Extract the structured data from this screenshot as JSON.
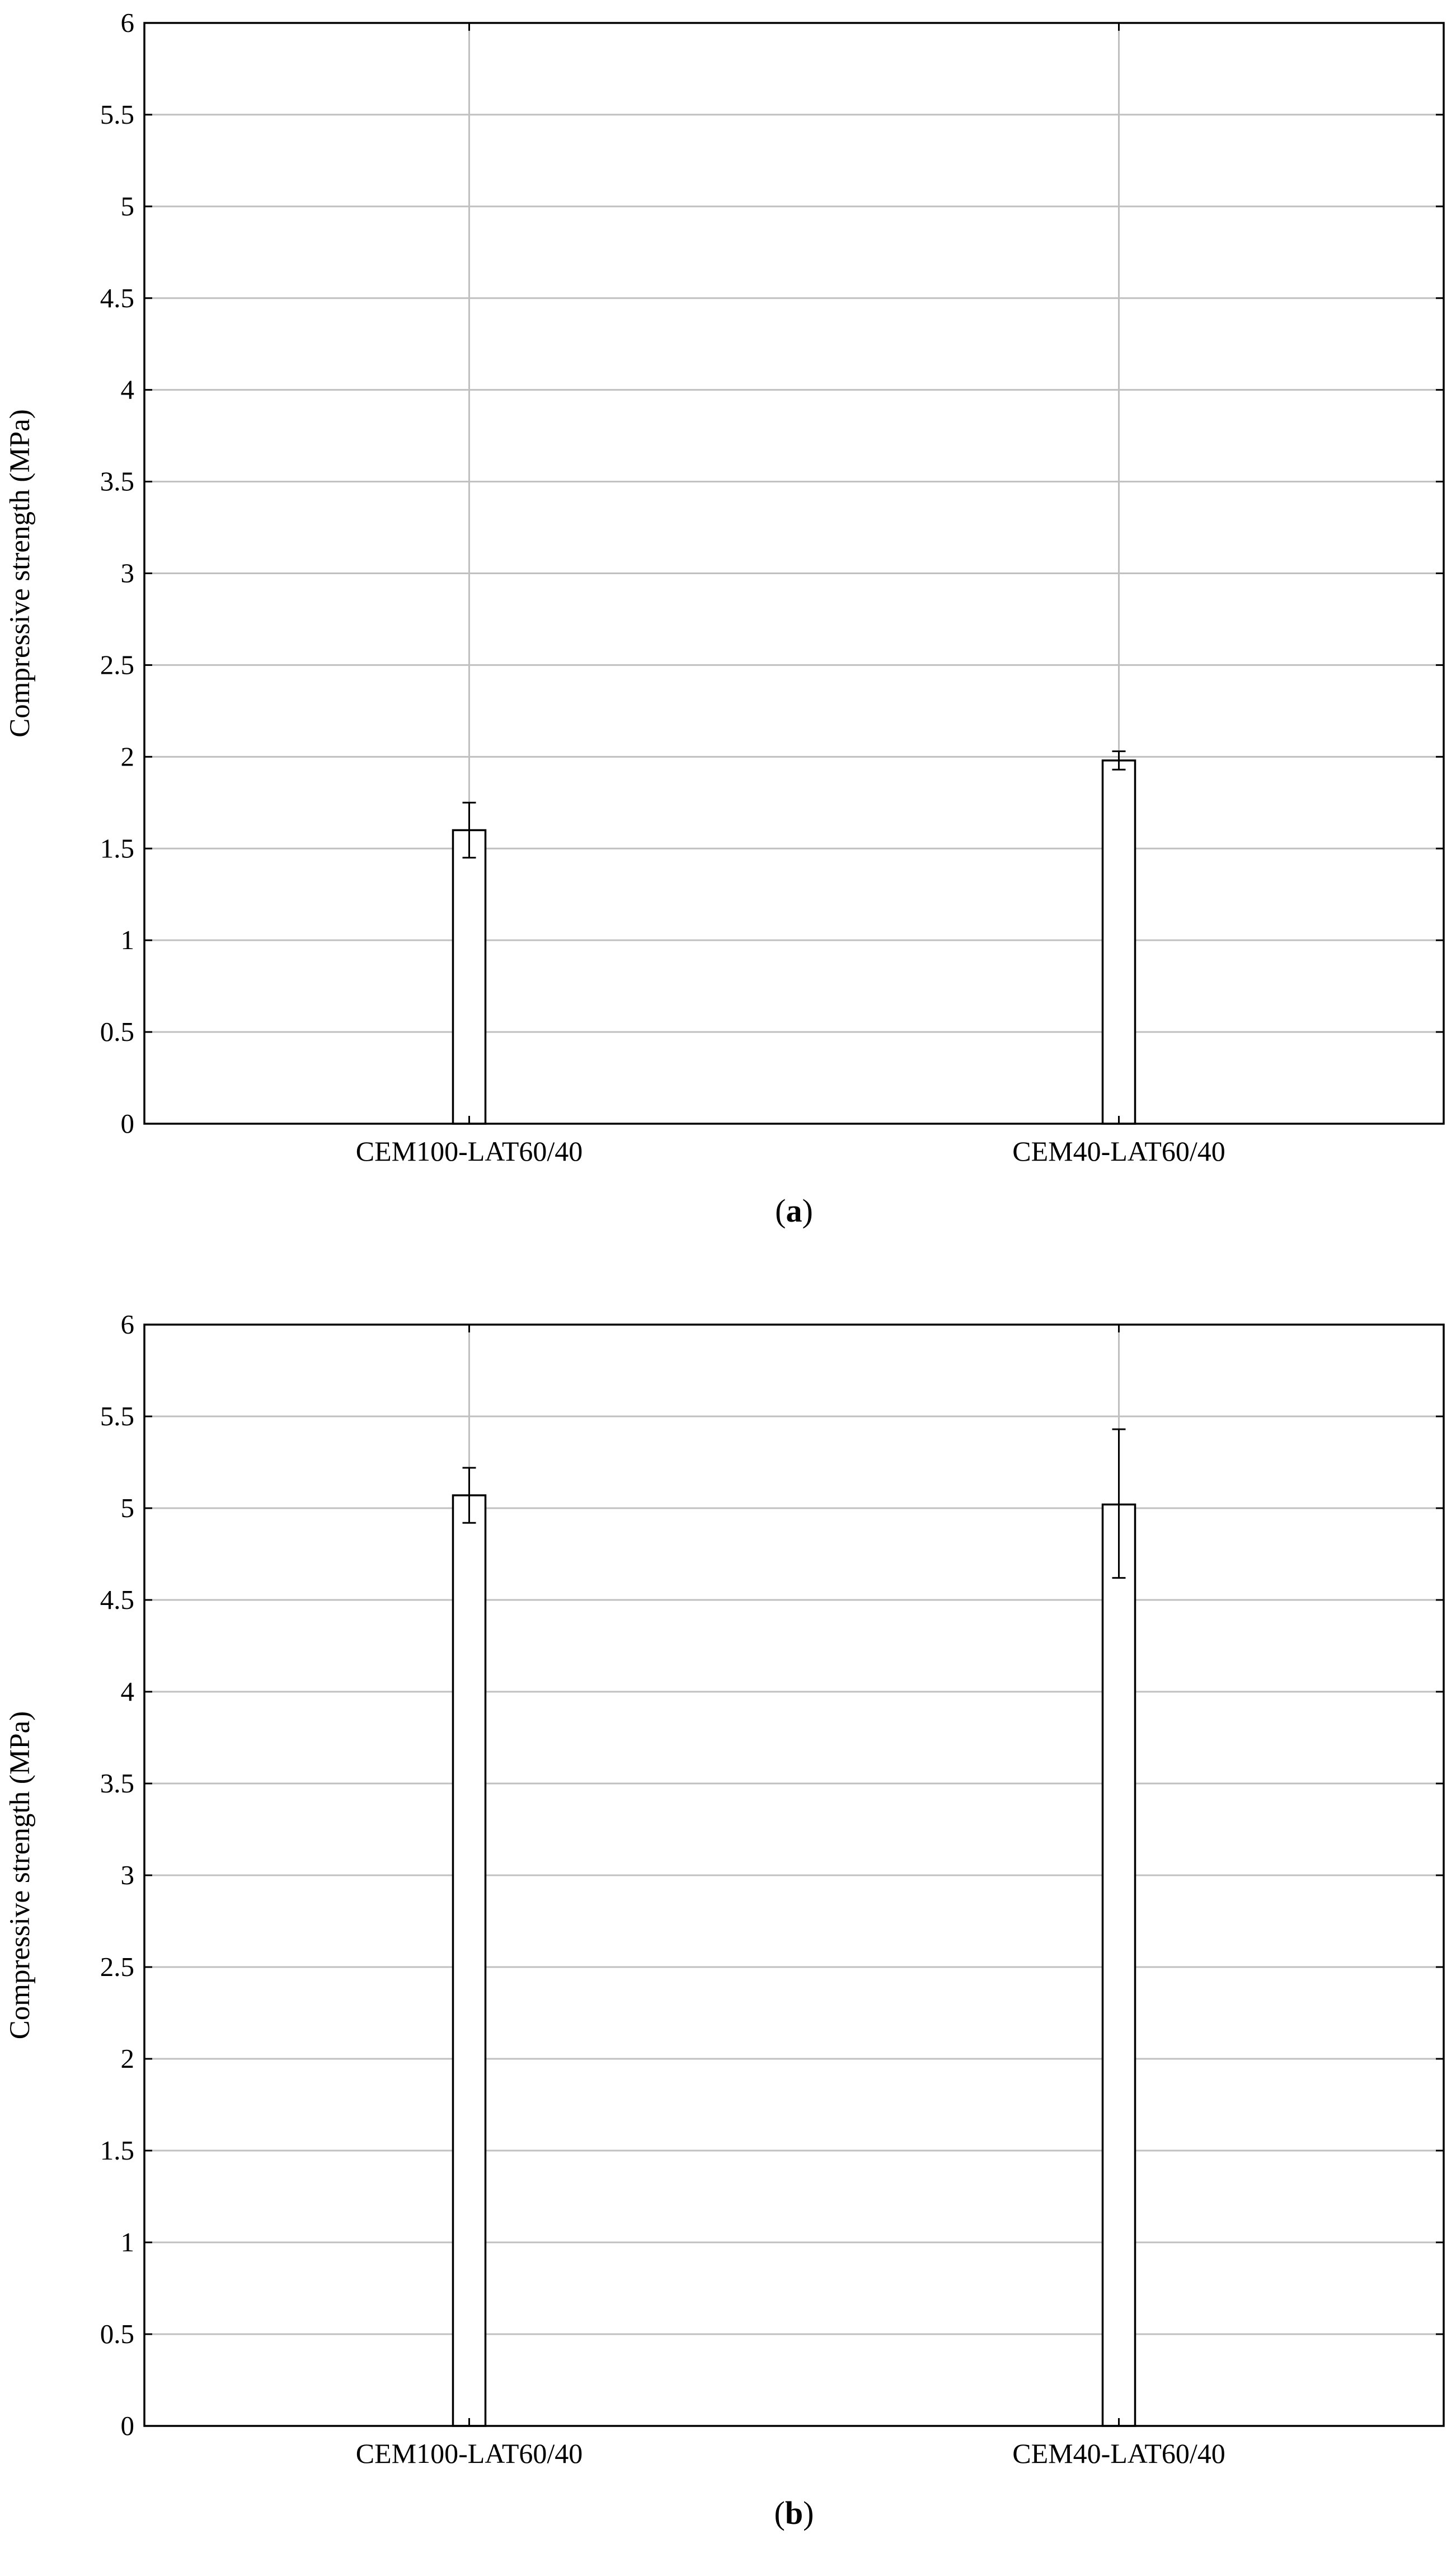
{
  "chart_data": [
    {
      "type": "bar",
      "caption_letter": "a",
      "categories": [
        "CEM100-LAT60/40",
        "CEM40-LAT60/40"
      ],
      "values": [
        1.6,
        1.98
      ],
      "error_low": [
        1.45,
        1.93
      ],
      "error_high": [
        1.75,
        2.03
      ],
      "ylabel": "Compressive strength (MPa)",
      "xlabel": "",
      "ylim": [
        0,
        6
      ],
      "yticks": [
        "0",
        "0.5",
        "1",
        "1.5",
        "2",
        "2.5",
        "3",
        "3.5",
        "4",
        "4.5",
        "5",
        "5.5",
        "6"
      ],
      "grid": true
    },
    {
      "type": "bar",
      "caption_letter": "b",
      "categories": [
        "CEM100-LAT60/40",
        "CEM40-LAT60/40"
      ],
      "values": [
        5.07,
        5.02
      ],
      "error_low": [
        4.92,
        4.62
      ],
      "error_high": [
        5.22,
        5.43
      ],
      "ylabel": "Compressive strength (MPa)",
      "xlabel": "",
      "ylim": [
        0,
        6
      ],
      "yticks": [
        "0",
        "0.5",
        "1",
        "1.5",
        "2",
        "2.5",
        "3",
        "3.5",
        "4",
        "4.5",
        "5",
        "5.5",
        "6"
      ],
      "grid": true
    }
  ],
  "colors": {
    "grid": "#c0c0c0",
    "axis": "#000000",
    "bar_fill": "#ffffff",
    "bar_stroke": "#000000"
  }
}
